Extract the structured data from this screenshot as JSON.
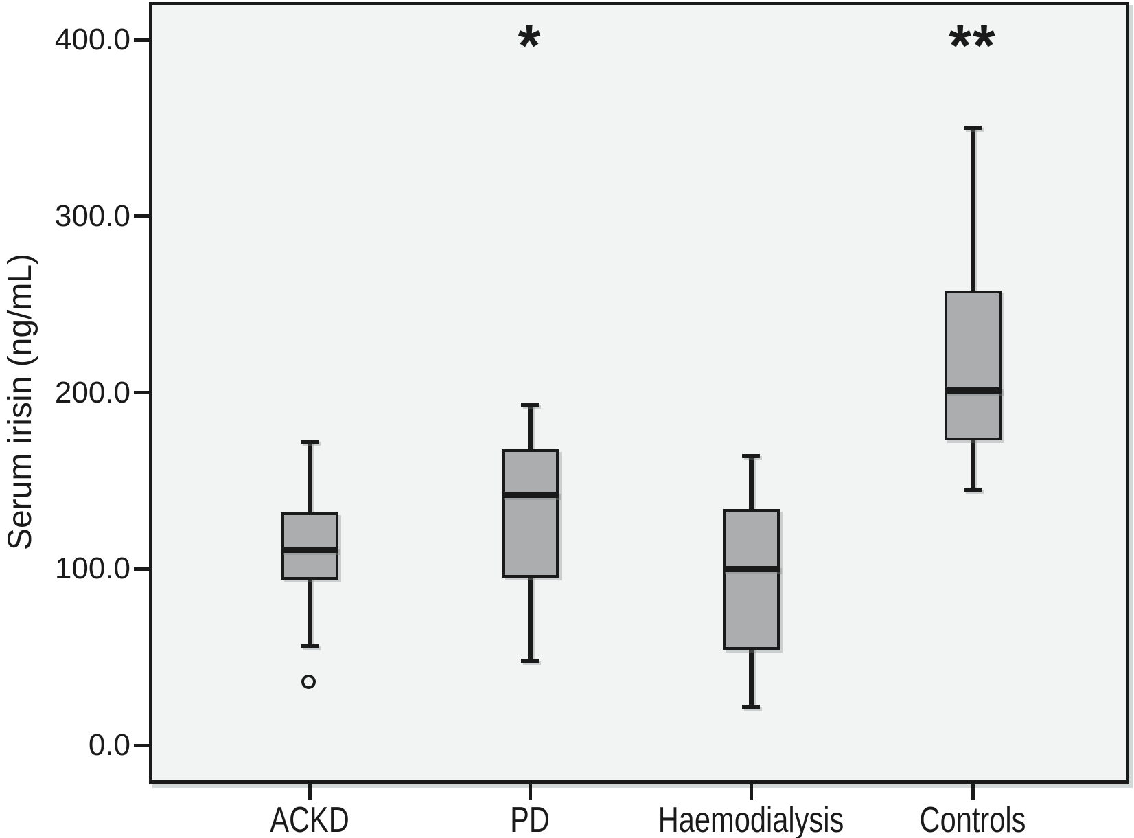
{
  "colors": {
    "page_bg": "#ffffff",
    "plot_bg": "#f2f4f4",
    "box_fill": "#abadae",
    "line": "#1a1a1a",
    "shadow": "#d2d7d7"
  },
  "chart_data": {
    "type": "boxplot",
    "title": "",
    "xlabel": "",
    "ylabel": "Serum irisin (ng/mL)",
    "ylim": [
      -22,
      421
    ],
    "grid": false,
    "yticks": [
      0,
      100,
      200,
      300,
      400
    ],
    "ytick_labels": [
      "0.0",
      "100.0",
      "200.0",
      "300.0",
      "400.0"
    ],
    "categories": [
      "ACKD",
      "PD",
      "Haemodialysis",
      "Controls"
    ],
    "series": [
      {
        "category": "ACKD",
        "whisker_low": 56,
        "q1": 94,
        "median": 111,
        "q3": 132,
        "whisker_high": 172,
        "outliers": [
          36
        ],
        "annotation": ""
      },
      {
        "category": "PD",
        "whisker_low": 48,
        "q1": 95,
        "median": 142,
        "q3": 168,
        "whisker_high": 193,
        "outliers": [],
        "annotation": "*"
      },
      {
        "category": "Haemodialysis",
        "whisker_low": 22,
        "q1": 54,
        "median": 100,
        "q3": 134,
        "whisker_high": 164,
        "outliers": [],
        "annotation": ""
      },
      {
        "category": "Controls",
        "whisker_low": 145,
        "q1": 173,
        "median": 201,
        "q3": 258,
        "whisker_high": 350,
        "outliers": [],
        "annotation": "**"
      }
    ]
  }
}
